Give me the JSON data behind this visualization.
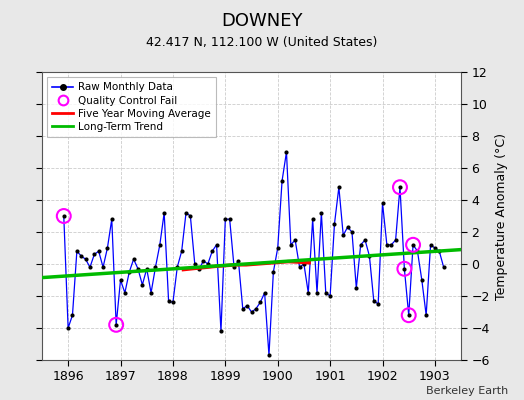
{
  "title": "DOWNEY",
  "subtitle": "42.417 N, 112.100 W (United States)",
  "ylabel_right": "Temperature Anomaly (°C)",
  "credit": "Berkeley Earth",
  "ylim": [
    -6,
    12
  ],
  "yticks": [
    -6,
    -4,
    -2,
    0,
    2,
    4,
    6,
    8,
    10,
    12
  ],
  "xlim": [
    1895.5,
    1903.5
  ],
  "xticks": [
    1896,
    1897,
    1898,
    1899,
    1900,
    1901,
    1902,
    1903
  ],
  "bg_color": "#e8e8e8",
  "plot_bg": "#ffffff",
  "raw_color": "#0000ff",
  "dot_color": "#000000",
  "ma_color": "#ff0000",
  "trend_color": "#00bb00",
  "qc_color": "#ff00ff",
  "monthly_data": [
    [
      1895.917,
      3.0
    ],
    [
      1896.0,
      -4.0
    ],
    [
      1896.083,
      -3.2
    ],
    [
      1896.167,
      0.8
    ],
    [
      1896.25,
      0.5
    ],
    [
      1896.333,
      0.3
    ],
    [
      1896.417,
      -0.2
    ],
    [
      1896.5,
      0.6
    ],
    [
      1896.583,
      0.8
    ],
    [
      1896.667,
      -0.2
    ],
    [
      1896.75,
      1.0
    ],
    [
      1896.833,
      2.8
    ],
    [
      1896.917,
      -3.8
    ],
    [
      1897.0,
      -1.0
    ],
    [
      1897.083,
      -1.8
    ],
    [
      1897.167,
      -0.5
    ],
    [
      1897.25,
      0.3
    ],
    [
      1897.333,
      -0.3
    ],
    [
      1897.417,
      -1.3
    ],
    [
      1897.5,
      -0.3
    ],
    [
      1897.583,
      -1.8
    ],
    [
      1897.667,
      -0.2
    ],
    [
      1897.75,
      1.2
    ],
    [
      1897.833,
      3.2
    ],
    [
      1897.917,
      -2.3
    ],
    [
      1898.0,
      -2.4
    ],
    [
      1898.083,
      -0.2
    ],
    [
      1898.167,
      0.8
    ],
    [
      1898.25,
      3.2
    ],
    [
      1898.333,
      3.0
    ],
    [
      1898.417,
      0.0
    ],
    [
      1898.5,
      -0.3
    ],
    [
      1898.583,
      0.2
    ],
    [
      1898.667,
      0.0
    ],
    [
      1898.75,
      0.8
    ],
    [
      1898.833,
      1.2
    ],
    [
      1898.917,
      -4.2
    ],
    [
      1899.0,
      2.8
    ],
    [
      1899.083,
      2.8
    ],
    [
      1899.167,
      -0.2
    ],
    [
      1899.25,
      0.2
    ],
    [
      1899.333,
      -2.8
    ],
    [
      1899.417,
      -2.6
    ],
    [
      1899.5,
      -3.0
    ],
    [
      1899.583,
      -2.8
    ],
    [
      1899.667,
      -2.4
    ],
    [
      1899.75,
      -1.8
    ],
    [
      1899.833,
      -5.7
    ],
    [
      1899.917,
      -0.5
    ],
    [
      1900.0,
      1.0
    ],
    [
      1900.083,
      5.2
    ],
    [
      1900.167,
      7.0
    ],
    [
      1900.25,
      1.2
    ],
    [
      1900.333,
      1.5
    ],
    [
      1900.417,
      -0.2
    ],
    [
      1900.5,
      0.0
    ],
    [
      1900.583,
      -1.8
    ],
    [
      1900.667,
      2.8
    ],
    [
      1900.75,
      -1.8
    ],
    [
      1900.833,
      3.2
    ],
    [
      1900.917,
      -1.8
    ],
    [
      1901.0,
      -2.0
    ],
    [
      1901.083,
      2.5
    ],
    [
      1901.167,
      4.8
    ],
    [
      1901.25,
      1.8
    ],
    [
      1901.333,
      2.3
    ],
    [
      1901.417,
      2.0
    ],
    [
      1901.5,
      -1.5
    ],
    [
      1901.583,
      1.2
    ],
    [
      1901.667,
      1.5
    ],
    [
      1901.75,
      0.5
    ],
    [
      1901.833,
      -2.3
    ],
    [
      1901.917,
      -2.5
    ],
    [
      1902.0,
      3.8
    ],
    [
      1902.083,
      1.2
    ],
    [
      1902.167,
      1.2
    ],
    [
      1902.25,
      1.5
    ],
    [
      1902.333,
      4.8
    ],
    [
      1902.417,
      -0.3
    ],
    [
      1902.5,
      -3.2
    ],
    [
      1902.583,
      1.2
    ],
    [
      1902.667,
      0.8
    ],
    [
      1902.75,
      -1.0
    ],
    [
      1902.833,
      -3.2
    ],
    [
      1902.917,
      1.2
    ],
    [
      1903.0,
      1.0
    ],
    [
      1903.083,
      0.8
    ],
    [
      1903.167,
      -0.2
    ]
  ],
  "qc_fail_points": [
    [
      1895.917,
      3.0
    ],
    [
      1896.917,
      -3.8
    ],
    [
      1902.333,
      4.8
    ],
    [
      1902.417,
      -0.3
    ],
    [
      1902.5,
      -3.2
    ],
    [
      1902.583,
      1.2
    ]
  ],
  "moving_avg": [
    [
      1898.2,
      -0.35
    ],
    [
      1898.4,
      -0.28
    ],
    [
      1898.6,
      -0.22
    ],
    [
      1898.8,
      -0.15
    ],
    [
      1899.0,
      -0.1
    ],
    [
      1899.2,
      -0.05
    ],
    [
      1899.4,
      -0.05
    ],
    [
      1899.6,
      0.0
    ],
    [
      1899.8,
      0.05
    ],
    [
      1900.0,
      0.1
    ],
    [
      1900.2,
      0.15
    ],
    [
      1900.4,
      0.12
    ],
    [
      1900.6,
      0.08
    ]
  ],
  "trend_x": [
    1895.5,
    1903.5
  ],
  "trend_y": [
    -0.85,
    0.9
  ]
}
